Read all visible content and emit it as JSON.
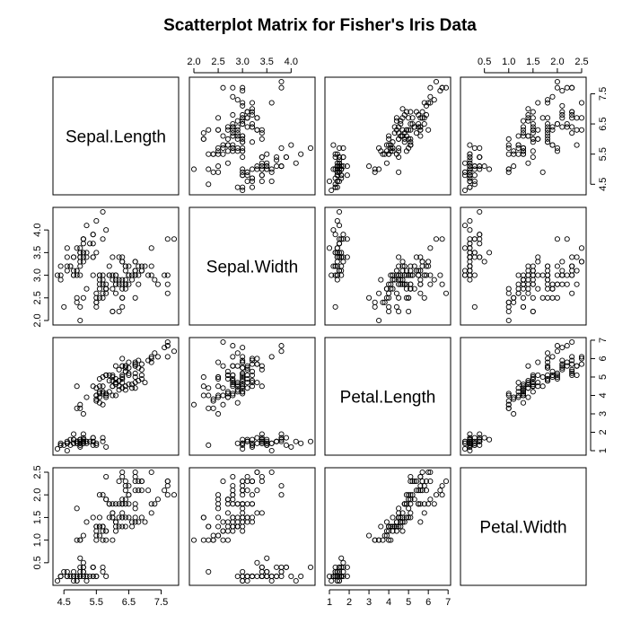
{
  "chart_data": {
    "type": "scatter",
    "title": "Scatterplot Matrix for Fisher's Iris Data",
    "variables": [
      "Sepal.Length",
      "Sepal.Width",
      "Petal.Length",
      "Petal.Width"
    ],
    "ranges": {
      "Sepal.Length": [
        4.3,
        7.9
      ],
      "Sepal.Width": [
        2.0,
        4.4
      ],
      "Petal.Length": [
        1.0,
        6.9
      ],
      "Petal.Width": [
        0.1,
        2.5
      ]
    },
    "ticks": {
      "Sepal.Length": [
        4.5,
        5.5,
        6.5,
        7.5
      ],
      "Sepal.Width": [
        2.0,
        2.5,
        3.0,
        3.5,
        4.0
      ],
      "Petal.Length": [
        1,
        2,
        3,
        4,
        5,
        6,
        7
      ],
      "Petal.Width": [
        0.5,
        1.0,
        1.5,
        2.0,
        2.5
      ]
    },
    "tick_labels": {
      "Sepal.Length": [
        "4.5",
        "5.5",
        "6.5",
        "7.5"
      ],
      "Sepal.Width": [
        "2.0",
        "2.5",
        "3.0",
        "3.5",
        "4.0"
      ],
      "Petal.Length": [
        "1",
        "2",
        "3",
        "4",
        "5",
        "6",
        "7"
      ],
      "Petal.Width": [
        "0.5",
        "1.0",
        "1.5",
        "2.0",
        "2.5"
      ]
    },
    "observations": [
      [
        5.1,
        3.5,
        1.4,
        0.2
      ],
      [
        4.9,
        3.0,
        1.4,
        0.2
      ],
      [
        4.7,
        3.2,
        1.3,
        0.2
      ],
      [
        4.6,
        3.1,
        1.5,
        0.2
      ],
      [
        5.0,
        3.6,
        1.4,
        0.2
      ],
      [
        5.4,
        3.9,
        1.7,
        0.4
      ],
      [
        4.6,
        3.4,
        1.4,
        0.3
      ],
      [
        5.0,
        3.4,
        1.5,
        0.2
      ],
      [
        4.4,
        2.9,
        1.4,
        0.2
      ],
      [
        4.9,
        3.1,
        1.5,
        0.1
      ],
      [
        5.4,
        3.7,
        1.5,
        0.2
      ],
      [
        4.8,
        3.4,
        1.6,
        0.2
      ],
      [
        4.8,
        3.0,
        1.4,
        0.1
      ],
      [
        4.3,
        3.0,
        1.1,
        0.1
      ],
      [
        5.8,
        4.0,
        1.2,
        0.2
      ],
      [
        5.7,
        4.4,
        1.5,
        0.4
      ],
      [
        5.4,
        3.9,
        1.3,
        0.4
      ],
      [
        5.1,
        3.5,
        1.4,
        0.3
      ],
      [
        5.7,
        3.8,
        1.7,
        0.3
      ],
      [
        5.1,
        3.8,
        1.5,
        0.3
      ],
      [
        5.4,
        3.4,
        1.7,
        0.2
      ],
      [
        5.1,
        3.7,
        1.5,
        0.4
      ],
      [
        4.6,
        3.6,
        1.0,
        0.2
      ],
      [
        5.1,
        3.3,
        1.7,
        0.5
      ],
      [
        4.8,
        3.4,
        1.9,
        0.2
      ],
      [
        5.0,
        3.0,
        1.6,
        0.2
      ],
      [
        5.0,
        3.4,
        1.6,
        0.4
      ],
      [
        5.2,
        3.5,
        1.5,
        0.2
      ],
      [
        5.2,
        3.4,
        1.4,
        0.2
      ],
      [
        4.7,
        3.2,
        1.6,
        0.2
      ],
      [
        4.8,
        3.1,
        1.6,
        0.2
      ],
      [
        5.4,
        3.4,
        1.5,
        0.4
      ],
      [
        5.2,
        4.1,
        1.5,
        0.1
      ],
      [
        5.5,
        4.2,
        1.4,
        0.2
      ],
      [
        4.9,
        3.1,
        1.5,
        0.2
      ],
      [
        5.0,
        3.2,
        1.2,
        0.2
      ],
      [
        5.5,
        3.5,
        1.3,
        0.2
      ],
      [
        4.9,
        3.6,
        1.4,
        0.1
      ],
      [
        4.4,
        3.0,
        1.3,
        0.2
      ],
      [
        5.1,
        3.4,
        1.5,
        0.2
      ],
      [
        5.0,
        3.5,
        1.3,
        0.3
      ],
      [
        4.5,
        2.3,
        1.3,
        0.3
      ],
      [
        4.4,
        3.2,
        1.3,
        0.2
      ],
      [
        5.0,
        3.5,
        1.6,
        0.6
      ],
      [
        5.1,
        3.8,
        1.9,
        0.4
      ],
      [
        4.8,
        3.0,
        1.4,
        0.3
      ],
      [
        5.1,
        3.8,
        1.6,
        0.2
      ],
      [
        4.6,
        3.2,
        1.4,
        0.2
      ],
      [
        5.3,
        3.7,
        1.5,
        0.2
      ],
      [
        5.0,
        3.3,
        1.4,
        0.2
      ],
      [
        7.0,
        3.2,
        4.7,
        1.4
      ],
      [
        6.4,
        3.2,
        4.5,
        1.5
      ],
      [
        6.9,
        3.1,
        4.9,
        1.5
      ],
      [
        5.5,
        2.3,
        4.0,
        1.3
      ],
      [
        6.5,
        2.8,
        4.6,
        1.5
      ],
      [
        5.7,
        2.8,
        4.5,
        1.3
      ],
      [
        6.3,
        3.3,
        4.7,
        1.6
      ],
      [
        4.9,
        2.4,
        3.3,
        1.0
      ],
      [
        6.6,
        2.9,
        4.6,
        1.3
      ],
      [
        5.2,
        2.7,
        3.9,
        1.4
      ],
      [
        5.0,
        2.0,
        3.5,
        1.0
      ],
      [
        5.9,
        3.0,
        4.2,
        1.5
      ],
      [
        6.0,
        2.2,
        4.0,
        1.0
      ],
      [
        6.1,
        2.9,
        4.7,
        1.4
      ],
      [
        5.6,
        2.9,
        3.6,
        1.3
      ],
      [
        6.7,
        3.1,
        4.4,
        1.4
      ],
      [
        5.6,
        3.0,
        4.5,
        1.5
      ],
      [
        5.8,
        2.7,
        4.1,
        1.0
      ],
      [
        6.2,
        2.2,
        4.5,
        1.5
      ],
      [
        5.6,
        2.5,
        3.9,
        1.1
      ],
      [
        5.9,
        3.2,
        4.8,
        1.8
      ],
      [
        6.1,
        2.8,
        4.0,
        1.3
      ],
      [
        6.3,
        2.5,
        4.9,
        1.5
      ],
      [
        6.1,
        2.8,
        4.7,
        1.2
      ],
      [
        6.4,
        2.9,
        4.3,
        1.3
      ],
      [
        6.6,
        3.0,
        4.4,
        1.4
      ],
      [
        6.8,
        2.8,
        4.8,
        1.4
      ],
      [
        6.7,
        3.0,
        5.0,
        1.7
      ],
      [
        6.0,
        2.9,
        4.5,
        1.5
      ],
      [
        5.7,
        2.6,
        3.5,
        1.0
      ],
      [
        5.5,
        2.4,
        3.8,
        1.1
      ],
      [
        5.5,
        2.4,
        3.7,
        1.0
      ],
      [
        5.8,
        2.7,
        3.9,
        1.2
      ],
      [
        6.0,
        2.7,
        5.1,
        1.6
      ],
      [
        5.4,
        3.0,
        4.5,
        1.5
      ],
      [
        6.0,
        3.4,
        4.5,
        1.6
      ],
      [
        6.7,
        3.1,
        4.7,
        1.5
      ],
      [
        6.3,
        2.3,
        4.4,
        1.3
      ],
      [
        5.6,
        3.0,
        4.1,
        1.3
      ],
      [
        5.5,
        2.5,
        4.0,
        1.3
      ],
      [
        5.5,
        2.6,
        4.4,
        1.2
      ],
      [
        6.1,
        3.0,
        4.6,
        1.4
      ],
      [
        5.8,
        2.6,
        4.0,
        1.2
      ],
      [
        5.0,
        2.3,
        3.3,
        1.0
      ],
      [
        5.6,
        2.7,
        4.2,
        1.3
      ],
      [
        5.7,
        3.0,
        4.2,
        1.2
      ],
      [
        5.7,
        2.9,
        4.2,
        1.3
      ],
      [
        6.2,
        2.9,
        4.3,
        1.3
      ],
      [
        5.1,
        2.5,
        3.0,
        1.1
      ],
      [
        5.7,
        2.8,
        4.1,
        1.3
      ],
      [
        6.3,
        3.3,
        6.0,
        2.5
      ],
      [
        5.8,
        2.7,
        5.1,
        1.9
      ],
      [
        7.1,
        3.0,
        5.9,
        2.1
      ],
      [
        6.3,
        2.9,
        5.6,
        1.8
      ],
      [
        6.5,
        3.0,
        5.8,
        2.2
      ],
      [
        7.6,
        3.0,
        6.6,
        2.1
      ],
      [
        4.9,
        2.5,
        4.5,
        1.7
      ],
      [
        7.3,
        2.9,
        6.3,
        1.8
      ],
      [
        6.7,
        2.5,
        5.8,
        1.8
      ],
      [
        7.2,
        3.6,
        6.1,
        2.5
      ],
      [
        6.5,
        3.2,
        5.1,
        2.0
      ],
      [
        6.4,
        2.7,
        5.3,
        1.9
      ],
      [
        6.8,
        3.0,
        5.5,
        2.1
      ],
      [
        5.7,
        2.5,
        5.0,
        2.0
      ],
      [
        5.8,
        2.8,
        5.1,
        2.4
      ],
      [
        6.4,
        3.2,
        5.3,
        2.3
      ],
      [
        6.5,
        3.0,
        5.5,
        1.8
      ],
      [
        7.7,
        3.8,
        6.7,
        2.2
      ],
      [
        7.7,
        2.6,
        6.9,
        2.3
      ],
      [
        6.0,
        2.2,
        5.0,
        1.5
      ],
      [
        6.9,
        3.2,
        5.7,
        2.3
      ],
      [
        5.6,
        2.8,
        4.9,
        2.0
      ],
      [
        7.7,
        2.8,
        6.7,
        2.0
      ],
      [
        6.3,
        2.7,
        4.9,
        1.8
      ],
      [
        6.7,
        3.3,
        5.7,
        2.1
      ],
      [
        7.2,
        3.2,
        6.0,
        1.8
      ],
      [
        6.2,
        2.8,
        4.8,
        1.8
      ],
      [
        6.1,
        3.0,
        4.9,
        1.8
      ],
      [
        6.4,
        2.8,
        5.6,
        2.1
      ],
      [
        7.2,
        3.0,
        5.8,
        1.6
      ],
      [
        7.4,
        2.8,
        6.1,
        1.9
      ],
      [
        7.9,
        3.8,
        6.4,
        2.0
      ],
      [
        6.4,
        2.8,
        5.6,
        2.2
      ],
      [
        6.3,
        2.8,
        5.1,
        1.5
      ],
      [
        6.1,
        2.6,
        5.6,
        1.4
      ],
      [
        7.7,
        3.0,
        6.1,
        2.3
      ],
      [
        6.3,
        3.4,
        5.6,
        2.4
      ],
      [
        6.4,
        3.1,
        5.5,
        1.8
      ],
      [
        6.0,
        3.0,
        4.8,
        1.8
      ],
      [
        6.9,
        3.1,
        5.4,
        2.1
      ],
      [
        6.7,
        3.1,
        5.6,
        2.4
      ],
      [
        6.9,
        3.1,
        5.1,
        2.3
      ],
      [
        5.8,
        2.7,
        5.1,
        1.9
      ],
      [
        6.8,
        3.2,
        5.9,
        2.3
      ],
      [
        6.7,
        3.3,
        5.7,
        2.5
      ],
      [
        6.7,
        3.0,
        5.2,
        2.3
      ],
      [
        6.3,
        2.5,
        5.0,
        1.9
      ],
      [
        6.5,
        3.0,
        5.2,
        2.0
      ],
      [
        6.2,
        3.4,
        5.4,
        2.3
      ],
      [
        5.9,
        3.0,
        5.1,
        1.8
      ]
    ]
  }
}
